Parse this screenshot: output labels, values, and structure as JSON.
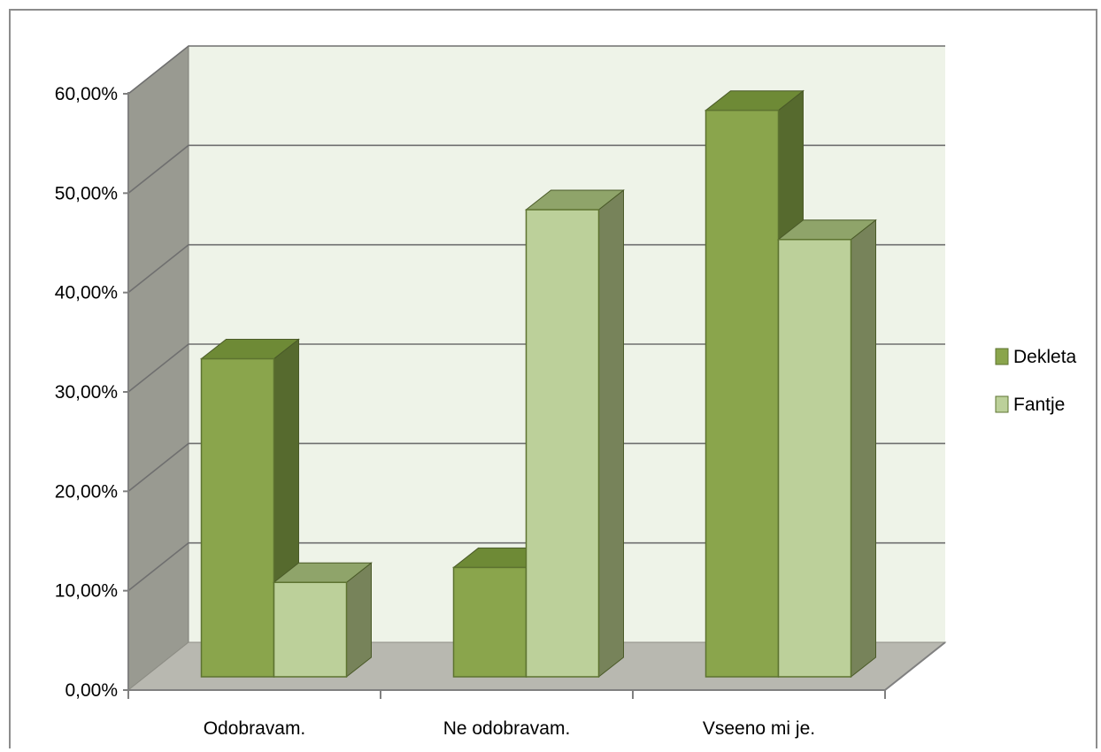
{
  "chart_data": {
    "type": "bar",
    "title": "",
    "xlabel": "",
    "ylabel": "",
    "categories": [
      "Odobravam.",
      "Ne odobravam.",
      "Vseeno mi je."
    ],
    "series": [
      {
        "name": "Dekleta",
        "values": [
          32.0,
          11.0,
          57.0
        ],
        "color": "#8aa54c",
        "side_color": "#566a2e",
        "top_color": "#6e8a36"
      },
      {
        "name": "Fantje",
        "values": [
          9.5,
          47.0,
          44.0
        ],
        "color": "#bcd09a",
        "side_color": "#77835a",
        "top_color": "#8fa46a"
      }
    ],
    "ylim": [
      0,
      60
    ],
    "y_ticks": [
      "0,00%",
      "10,00%",
      "20,00%",
      "30,00%",
      "40,00%",
      "50,00%",
      "60,00%"
    ],
    "y_tick_values": [
      0,
      10,
      20,
      30,
      40,
      50,
      60
    ],
    "grid": true,
    "legend_position": "right",
    "style": "3d-clustered-column",
    "colors": {
      "back_wall": "#eef3e8",
      "side_wall": "#999a91",
      "floor": "#b8b8b0",
      "gridline": "#6f6f6f",
      "axis": "#808080"
    }
  }
}
